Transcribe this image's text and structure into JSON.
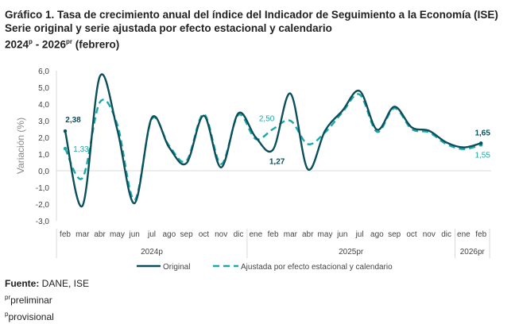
{
  "title": {
    "line1": "Gráfico 1. Tasa de crecimiento anual del índice del Indicador de Seguimiento a la Economía (ISE)",
    "line2": "Serie original y serie ajustada por efecto estacional y calendario",
    "line3_a": "2024",
    "line3_a_sup": "p",
    "line3_b": " - 2026",
    "line3_b_sup": "pr",
    "line3_c": " (febrero)"
  },
  "notes": {
    "source_label": "Fuente:",
    "source": " DANE, ISE",
    "pr_sup": "pr",
    "pr": "preliminar",
    "p_sup": "p",
    "p": "provisional"
  },
  "colors": {
    "original": "#0b4f5c",
    "adjusted": "#1aa9a8",
    "axis": "#d9d9d9"
  },
  "chart_data": {
    "type": "line",
    "ylabel": "Variación (%)",
    "ylim": [
      -3.0,
      6.0
    ],
    "yticks": [
      "-3,0",
      "-2,0",
      "-1,0",
      "0,0",
      "1,0",
      "2,0",
      "3,0",
      "4,0",
      "5,0",
      "6,0"
    ],
    "categories": [
      "feb",
      "mar",
      "abr",
      "may",
      "jun",
      "jul",
      "ago",
      "sep",
      "oct",
      "nov",
      "dic",
      "ene",
      "feb",
      "mar",
      "abr",
      "may",
      "jun",
      "jul",
      "ago",
      "sep",
      "oct",
      "nov",
      "dic",
      "ene",
      "feb"
    ],
    "year_groups": [
      {
        "label": "2024p",
        "count": 11
      },
      {
        "label": "2025pr",
        "count": 12
      },
      {
        "label": "2026pr",
        "count": 2
      }
    ],
    "series": [
      {
        "name": "Original",
        "style": "solid",
        "values": [
          2.38,
          -2.1,
          5.65,
          2.5,
          -1.95,
          3.17,
          1.4,
          0.45,
          3.3,
          0.2,
          3.45,
          2.0,
          1.27,
          4.63,
          0.1,
          2.4,
          3.6,
          4.78,
          2.46,
          3.84,
          2.6,
          2.4,
          1.7,
          1.4,
          1.65
        ]
      },
      {
        "name": "Ajustada por efecto estacional y calendario",
        "style": "dashed",
        "values": [
          1.33,
          -0.43,
          4.1,
          2.8,
          -1.75,
          3.1,
          1.5,
          0.6,
          3.4,
          0.4,
          3.35,
          1.9,
          2.5,
          3.0,
          1.6,
          2.3,
          3.5,
          4.57,
          2.33,
          3.75,
          2.5,
          2.3,
          1.6,
          1.3,
          1.55
        ]
      }
    ],
    "data_labels": [
      {
        "series": 0,
        "index": 0,
        "text": "2,38"
      },
      {
        "series": 1,
        "index": 0,
        "text": "1,33"
      },
      {
        "series": 1,
        "index": 12,
        "text": "2,50"
      },
      {
        "series": 0,
        "index": 12,
        "text": "1,27"
      },
      {
        "series": 0,
        "index": 24,
        "text": "1,65"
      },
      {
        "series": 1,
        "index": 24,
        "text": "1,55"
      }
    ],
    "legend_position": "bottom",
    "grid": false
  }
}
